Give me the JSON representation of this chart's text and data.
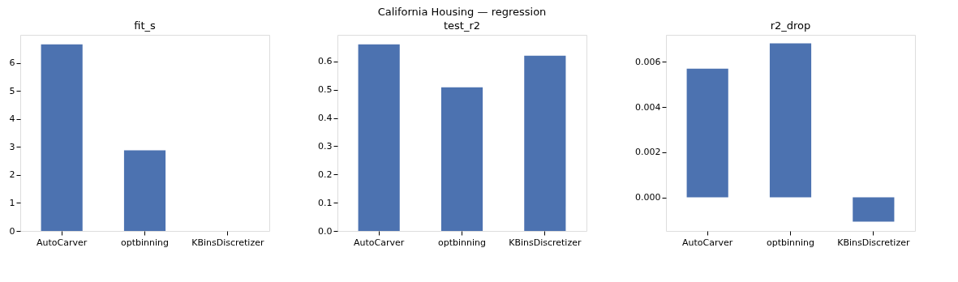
{
  "chart_data": [
    {
      "type": "bar",
      "title": "fit_s",
      "annotations": [
        "California Housing — regression"
      ],
      "categories": [
        "AutoCarver",
        "optbinning",
        "KBinsDiscretizer"
      ],
      "values": [
        6.66,
        2.88,
        0.0
      ],
      "color": "#4c72b0",
      "ylim": [
        0,
        7
      ],
      "yticks": [
        0,
        1,
        2,
        3,
        4,
        5,
        6
      ],
      "grid": false
    },
    {
      "type": "bar",
      "title": "test_r2",
      "categories": [
        "AutoCarver",
        "optbinning",
        "KBinsDiscretizer"
      ],
      "values": [
        0.66,
        0.508,
        0.62
      ],
      "color": "#4c72b0",
      "ylim": [
        0,
        0.694
      ],
      "yticks": [
        {
          "value": 0,
          "label": "0.0"
        },
        0.1,
        0.2,
        0.3,
        0.4,
        0.5,
        0.6
      ],
      "grid": false
    },
    {
      "type": "bar",
      "title": "r2_drop",
      "categories": [
        "AutoCarver",
        "optbinning",
        "KBinsDiscretizer"
      ],
      "values": [
        0.0057,
        0.00682,
        -0.00108
      ],
      "color": "#4c72b0",
      "ylim": [
        -0.00149,
        0.0072
      ],
      "yticks": [
        {
          "value": 0,
          "label": "0.000"
        },
        {
          "value": 0.002,
          "label": "0.002"
        },
        {
          "value": 0.004,
          "label": "0.004"
        },
        {
          "value": 0.006,
          "label": "0.006"
        }
      ],
      "grid": false
    }
  ]
}
